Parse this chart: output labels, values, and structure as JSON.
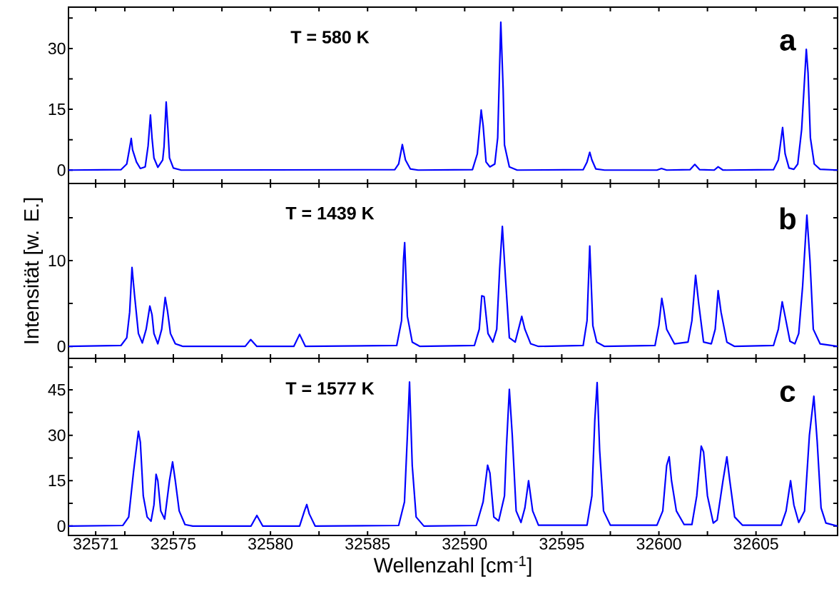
{
  "chart_data": [
    {
      "type": "line",
      "tick_labels": "y",
      "annotations": [
        "T = 580 K",
        "a"
      ],
      "xlim": [
        32569.6,
        32609.2
      ],
      "ylim": [
        -3.3,
        40.2
      ],
      "xticks": [
        32571,
        {
          "value": 32572.5,
          "label": null
        },
        32575,
        {
          "value": 32577.5,
          "label": null
        },
        32580,
        {
          "value": 32582.5,
          "label": null
        },
        32585,
        {
          "value": 32587.5,
          "label": null
        },
        32590,
        {
          "value": 32592.5,
          "label": null
        },
        32595,
        {
          "value": 32597.5,
          "label": null
        },
        32600,
        {
          "value": 32602.5,
          "label": null
        },
        32605,
        {
          "value": 32607.5,
          "label": null
        }
      ],
      "yticks": [
        0,
        {
          "value": 7.5,
          "label": null
        },
        15,
        {
          "value": 22.5,
          "label": null
        },
        30,
        {
          "value": 37.5,
          "label": null
        }
      ],
      "series": [
        {
          "color": "#0000ff",
          "x": [
            32569.6,
            32572.3,
            32572.6,
            32572.75,
            32572.83,
            32572.9,
            32573.1,
            32573.3,
            32573.55,
            32573.7,
            32573.82,
            32573.9,
            32574.0,
            32574.2,
            32574.45,
            32574.52,
            32574.63,
            32574.72,
            32574.8,
            32575.0,
            32575.4,
            32586.4,
            32586.6,
            32586.79,
            32586.95,
            32587.2,
            32587.6,
            32590.4,
            32590.65,
            32590.85,
            32590.95,
            32591.1,
            32591.3,
            32591.55,
            32591.7,
            32591.86,
            32591.98,
            32592.05,
            32592.15,
            32592.3,
            32592.7,
            32596.1,
            32596.3,
            32596.44,
            32596.55,
            32596.75,
            32597.2,
            32599.9,
            32600.13,
            32600.4,
            32601.6,
            32601.85,
            32602.1,
            32602.85,
            32603.05,
            32603.3,
            32605.9,
            32606.15,
            32606.37,
            32606.5,
            32606.7,
            32606.95,
            32607.15,
            32607.35,
            32607.59,
            32607.68,
            32607.8,
            32608.0,
            32608.3,
            32609.2
          ],
          "values": [
            0,
            0.1,
            1.5,
            5.5,
            7.8,
            5,
            2,
            0.4,
            0.8,
            6,
            13.6,
            8,
            3,
            0.7,
            2.5,
            5.8,
            16.8,
            10,
            3,
            0.5,
            0,
            0.1,
            1.5,
            6.3,
            2.5,
            0.3,
            0,
            0.1,
            4,
            14.8,
            11,
            2,
            0.8,
            1.5,
            8,
            36.5,
            20,
            6.2,
            4,
            0.8,
            0,
            0.1,
            2,
            4.4,
            2.5,
            0.3,
            0,
            0,
            0.4,
            0,
            0.1,
            1.4,
            0.1,
            0,
            0.8,
            0,
            0.1,
            2.5,
            10.5,
            4,
            0.5,
            0.2,
            1.5,
            10,
            29.8,
            24,
            8,
            1.5,
            0.2,
            0
          ]
        }
      ]
    },
    {
      "type": "line",
      "tick_labels": "y",
      "annotations": [
        "T = 1439 K",
        "b"
      ],
      "ylabel": "Intensität [w. E.]",
      "xlim": [
        32569.6,
        32609.2
      ],
      "ylim": [
        -1.4,
        19
      ],
      "xticks": [
        32571,
        {
          "value": 32572.5,
          "label": null
        },
        32575,
        {
          "value": 32577.5,
          "label": null
        },
        32580,
        {
          "value": 32582.5,
          "label": null
        },
        32585,
        {
          "value": 32587.5,
          "label": null
        },
        32590,
        {
          "value": 32592.5,
          "label": null
        },
        32595,
        {
          "value": 32597.5,
          "label": null
        },
        32600,
        {
          "value": 32602.5,
          "label": null
        },
        32605,
        {
          "value": 32607.5,
          "label": null
        }
      ],
      "yticks": [
        0,
        {
          "value": 5,
          "label": null
        },
        10,
        {
          "value": 15,
          "label": null
        }
      ],
      "series": [
        {
          "color": "#0000ff",
          "x": [
            32569.6,
            32572.3,
            32572.6,
            32572.75,
            32572.87,
            32573.0,
            32573.2,
            32573.4,
            32573.6,
            32573.79,
            32573.9,
            32574.0,
            32574.2,
            32574.4,
            32574.58,
            32574.7,
            32574.85,
            32575.1,
            32575.5,
            32578.7,
            32578.98,
            32579.3,
            32581.2,
            32581.5,
            32581.8,
            32586.5,
            32586.75,
            32586.85,
            32586.91,
            32587.05,
            32587.3,
            32587.7,
            32590.5,
            32590.75,
            32590.88,
            32591.0,
            32591.2,
            32591.45,
            32591.65,
            32591.8,
            32591.94,
            32592.1,
            32592.3,
            32592.6,
            32592.94,
            32593.1,
            32593.4,
            32593.8,
            32596.1,
            32596.3,
            32596.44,
            32596.6,
            32596.8,
            32597.2,
            32599.8,
            32600.0,
            32600.15,
            32600.25,
            32600.4,
            32600.8,
            32601.5,
            32601.7,
            32601.89,
            32602.05,
            32602.3,
            32602.7,
            32602.9,
            32603.05,
            32603.2,
            32603.5,
            32603.9,
            32605.9,
            32606.15,
            32606.35,
            32606.5,
            32606.75,
            32607.0,
            32607.2,
            32607.4,
            32607.62,
            32607.78,
            32607.95,
            32608.3,
            32609.2
          ],
          "values": [
            0,
            0.1,
            1,
            4,
            9.2,
            6,
            1.5,
            0.4,
            2,
            4.7,
            3.7,
            1.5,
            0.3,
            2,
            5.7,
            4.1,
            1.5,
            0.3,
            0,
            0,
            0.8,
            0,
            0,
            1.4,
            0,
            0.1,
            3,
            10.1,
            12.1,
            3.5,
            0.5,
            0,
            0.1,
            2,
            5.9,
            5.8,
            1.5,
            0.5,
            2,
            9,
            14,
            8,
            1,
            0.5,
            3.5,
            2,
            0.3,
            0,
            0.1,
            3,
            11.7,
            2.4,
            0.5,
            0,
            0.1,
            2.5,
            5.6,
            4.3,
            2,
            0.3,
            0.5,
            3,
            8.3,
            5,
            0.5,
            0.3,
            2,
            6.5,
            4,
            0.5,
            0,
            0.1,
            2,
            5.2,
            3.5,
            0.6,
            0.3,
            1.5,
            7,
            15.3,
            10,
            2,
            0.3,
            0
          ]
        }
      ]
    },
    {
      "type": "line",
      "annotations": [
        "T = 1577 K",
        "c"
      ],
      "xlabel": "Wellenzahl [cm$^{-1}$]",
      "xlim": [
        32569.6,
        32609.2
      ],
      "ylim": [
        -3.1,
        55.4
      ],
      "xticks": [
        32571,
        {
          "value": 32572.5,
          "label": null
        },
        32575,
        {
          "value": 32577.5,
          "label": null
        },
        32580,
        {
          "value": 32582.5,
          "label": null
        },
        32585,
        {
          "value": 32587.5,
          "label": null
        },
        32590,
        {
          "value": 32592.5,
          "label": null
        },
        32595,
        {
          "value": 32597.5,
          "label": null
        },
        32600,
        {
          "value": 32602.5,
          "label": null
        },
        32605,
        {
          "value": 32607.5,
          "label": null
        }
      ],
      "yticks": [
        0,
        {
          "value": 7.5,
          "label": null
        },
        15,
        {
          "value": 22.5,
          "label": null
        },
        30,
        {
          "value": 37.5,
          "label": null
        },
        45,
        {
          "value": 52.5,
          "label": null
        }
      ],
      "series": [
        {
          "color": "#0000ff",
          "x": [
            32569.6,
            32572.4,
            32572.7,
            32572.95,
            32573.2,
            32573.3,
            32573.45,
            32573.65,
            32573.85,
            32574.0,
            32574.11,
            32574.2,
            32574.35,
            32574.55,
            32574.8,
            32574.96,
            32575.1,
            32575.3,
            32575.6,
            32576.0,
            32579.0,
            32579.3,
            32579.6,
            32581.5,
            32581.75,
            32581.87,
            32582.0,
            32582.3,
            32586.6,
            32586.9,
            32587.05,
            32587.16,
            32587.3,
            32587.5,
            32587.9,
            32590.6,
            32590.95,
            32591.18,
            32591.3,
            32591.5,
            32591.75,
            32592.05,
            32592.15,
            32592.3,
            32592.45,
            32592.65,
            32592.9,
            32593.1,
            32593.29,
            32593.5,
            32593.8,
            32596.3,
            32596.55,
            32596.7,
            32596.82,
            32596.95,
            32597.15,
            32597.5,
            32599.9,
            32600.2,
            32600.4,
            32600.53,
            32600.65,
            32600.9,
            32601.3,
            32601.7,
            32601.95,
            32602.18,
            32602.3,
            32602.5,
            32602.8,
            32603.0,
            32603.3,
            32603.5,
            32603.65,
            32603.9,
            32604.3,
            32606.3,
            32606.55,
            32606.78,
            32606.95,
            32607.2,
            32607.5,
            32607.75,
            32607.98,
            32608.15,
            32608.35,
            32608.6,
            32609.2
          ],
          "values": [
            0,
            0.2,
            3,
            18,
            31.3,
            27.7,
            10,
            3,
            1.6,
            7,
            17.1,
            15,
            5,
            2.3,
            15,
            21.2,
            15,
            5,
            0.5,
            0,
            0,
            3.5,
            0,
            0,
            5,
            7.1,
            4,
            0,
            0.2,
            8,
            30,
            47.6,
            20,
            3,
            0,
            0.2,
            8,
            20.1,
            17.5,
            3,
            1.7,
            10,
            26,
            45.2,
            30,
            5,
            1.2,
            6,
            15,
            5,
            0.3,
            0.3,
            10,
            35,
            47.4,
            25,
            5,
            0.3,
            0.3,
            5,
            20,
            22.9,
            15,
            5,
            0.5,
            0.5,
            10,
            26.4,
            24.5,
            10,
            1,
            2,
            15,
            22.9,
            15,
            3,
            0.3,
            0.3,
            5,
            15,
            7,
            1.2,
            5,
            30,
            42.9,
            28,
            6,
            1,
            0
          ]
        }
      ]
    }
  ]
}
